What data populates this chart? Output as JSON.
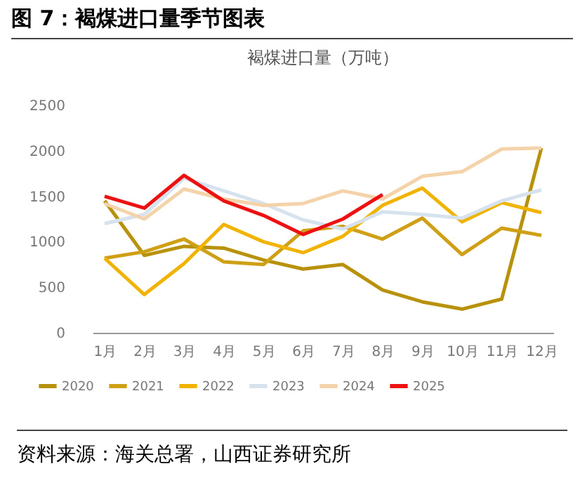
{
  "chart_data": {
    "type": "line",
    "title": "图 7：褐煤进口量季节图表",
    "subtitle": "褐煤进口量（万吨）",
    "annotations": [
      "资料来源：海关总署，山西证券研究所"
    ],
    "categories": [
      "1月",
      "2月",
      "3月",
      "4月",
      "5月",
      "6月",
      "7月",
      "8月",
      "9月",
      "10月",
      "11月",
      "12月"
    ],
    "ylim": [
      0,
      2500
    ],
    "yticks": [
      0,
      500,
      1000,
      1500,
      2000,
      2500
    ],
    "grid": false,
    "legend": "bottom",
    "marker": "none",
    "line_style": "solid",
    "series": [
      {
        "name": "2020",
        "color": "#b8920c",
        "values": [
          1450,
          850,
          950,
          930,
          800,
          700,
          750,
          470,
          340,
          260,
          370,
          2030
        ]
      },
      {
        "name": "2021",
        "color": "#cfa016",
        "values": [
          820,
          890,
          1030,
          780,
          750,
          1120,
          1170,
          1030,
          1260,
          860,
          1150,
          1070
        ]
      },
      {
        "name": "2022",
        "color": "#f0b400",
        "values": [
          820,
          420,
          760,
          1190,
          1000,
          880,
          1060,
          1400,
          1590,
          1220,
          1430,
          1320
        ]
      },
      {
        "name": "2023",
        "color": "#d6e2ee",
        "values": [
          1200,
          1300,
          1700,
          1560,
          1420,
          1240,
          1140,
          1330,
          1300,
          1260,
          1450,
          1570
        ]
      },
      {
        "name": "2024",
        "color": "#f5d3aa",
        "values": [
          1420,
          1250,
          1580,
          1470,
          1400,
          1420,
          1560,
          1470,
          1720,
          1770,
          2020,
          2030
        ]
      },
      {
        "name": "2025",
        "color": "#ee1111",
        "values": [
          1500,
          1370,
          1730,
          1450,
          1290,
          1080,
          1250,
          1520,
          null,
          null,
          null,
          null
        ]
      }
    ]
  }
}
